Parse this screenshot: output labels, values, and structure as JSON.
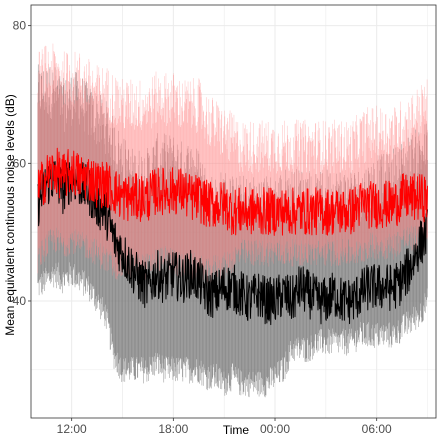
{
  "chart_data": {
    "type": "line",
    "title": "",
    "xlabel": "Time",
    "ylabel": "Mean equivalent continuous noise levels (dB)",
    "x_unit": "hours since midnight (continuing past midnight as 24+)",
    "xlim": [
      9.6,
      33.5
    ],
    "ylim": [
      23,
      83
    ],
    "x_ticks": [
      {
        "value": 12,
        "label": "12:00"
      },
      {
        "value": 18,
        "label": "18:00"
      },
      {
        "value": 24,
        "label": "00:00"
      },
      {
        "value": 30,
        "label": "06:00"
      }
    ],
    "y_ticks": [
      {
        "value": 40,
        "label": "40"
      },
      {
        "value": 60,
        "label": "60"
      },
      {
        "value": 80,
        "label": "80"
      }
    ],
    "grid": true,
    "legend": "none",
    "colors": {
      "black_series": "#000000",
      "black_band": "#7a7a7a",
      "red_series": "#ff0000",
      "red_band": "#ff8a8a",
      "panel_background": "#ffffff",
      "grid": "#ebebeb"
    },
    "series": [
      {
        "color": "black",
        "x": [
          10.0,
          10.5,
          11.0,
          11.5,
          12.0,
          12.5,
          13.0,
          13.5,
          14.0,
          14.5,
          15.0,
          15.5,
          16.0,
          16.5,
          17.0,
          17.5,
          18.0,
          18.5,
          19.0,
          19.5,
          20.0,
          20.5,
          21.0,
          21.5,
          22.0,
          22.5,
          23.0,
          23.5,
          24.0,
          24.5,
          25.0,
          25.5,
          26.0,
          26.5,
          27.0,
          27.5,
          28.0,
          28.5,
          29.0,
          29.5,
          30.0,
          30.5,
          31.0,
          31.5,
          32.0,
          32.5,
          33.0
        ],
        "values": [
          54,
          57,
          58,
          56,
          58,
          57,
          56,
          54,
          53,
          49,
          47,
          45,
          43,
          42,
          44,
          43,
          44,
          43,
          44,
          43,
          41,
          41,
          42,
          42,
          41,
          40,
          41,
          40,
          40,
          41,
          40,
          42,
          41,
          40,
          40,
          41,
          40,
          40,
          41,
          42,
          42,
          42,
          42,
          43,
          45,
          48,
          50
        ],
        "band_low": [
          42,
          43,
          44,
          43,
          44,
          43,
          42,
          40,
          38,
          32,
          30,
          30,
          30,
          30,
          31,
          30,
          30,
          30,
          30,
          30,
          29,
          29,
          28,
          29,
          28,
          28,
          28,
          28,
          29,
          30,
          33,
          33,
          33,
          34,
          34,
          34,
          34,
          34,
          35,
          35,
          35,
          35,
          35,
          36,
          37,
          38,
          40
        ],
        "band_high": [
          68,
          68,
          68,
          66,
          67,
          67,
          65,
          64,
          63,
          60,
          58,
          56,
          56,
          56,
          58,
          58,
          58,
          57,
          57,
          56,
          53,
          52,
          53,
          52,
          52,
          52,
          52,
          52,
          52,
          53,
          53,
          53,
          53,
          52,
          53,
          53,
          53,
          53,
          53,
          54,
          55,
          55,
          56,
          57,
          58,
          59,
          60
        ]
      },
      {
        "color": "red",
        "x": [
          10.0,
          10.5,
          11.0,
          11.5,
          12.0,
          12.5,
          13.0,
          13.5,
          14.0,
          14.5,
          15.0,
          15.5,
          16.0,
          16.5,
          17.0,
          17.5,
          18.0,
          18.5,
          19.0,
          19.5,
          20.0,
          20.5,
          21.0,
          21.5,
          22.0,
          22.5,
          23.0,
          23.5,
          24.0,
          24.5,
          25.0,
          25.5,
          26.0,
          26.5,
          27.0,
          27.5,
          28.0,
          28.5,
          29.0,
          29.5,
          30.0,
          30.5,
          31.0,
          31.5,
          32.0,
          32.5,
          33.0
        ],
        "values": [
          56,
          58,
          59,
          58,
          59,
          58,
          58,
          57,
          57,
          56,
          55,
          55,
          55,
          55,
          56,
          56,
          56,
          56,
          55,
          55,
          54,
          54,
          54,
          53,
          53,
          53,
          53,
          53,
          53,
          53,
          53,
          53,
          53,
          53,
          53,
          53,
          53,
          53,
          54,
          54,
          54,
          54,
          54,
          55,
          55,
          55,
          55
        ],
        "band_low": [
          46,
          48,
          49,
          48,
          49,
          48,
          48,
          47,
          46,
          45,
          45,
          45,
          45,
          45,
          46,
          46,
          46,
          45,
          45,
          45,
          44,
          45,
          45,
          46,
          47,
          47,
          47,
          47,
          47,
          47,
          47,
          47,
          47,
          47,
          47,
          47,
          47,
          47,
          47,
          48,
          48,
          48,
          48,
          49,
          49,
          49,
          49
        ],
        "band_high": [
          70,
          71,
          71,
          70,
          70,
          70,
          69,
          68,
          68,
          67,
          66,
          66,
          66,
          66,
          67,
          67,
          67,
          66,
          66,
          66,
          64,
          63,
          62,
          61,
          60,
          60,
          60,
          60,
          60,
          60,
          60,
          60,
          60,
          60,
          60,
          60,
          60,
          60,
          61,
          62,
          62,
          62,
          62,
          63,
          64,
          65,
          66
        ]
      }
    ]
  }
}
